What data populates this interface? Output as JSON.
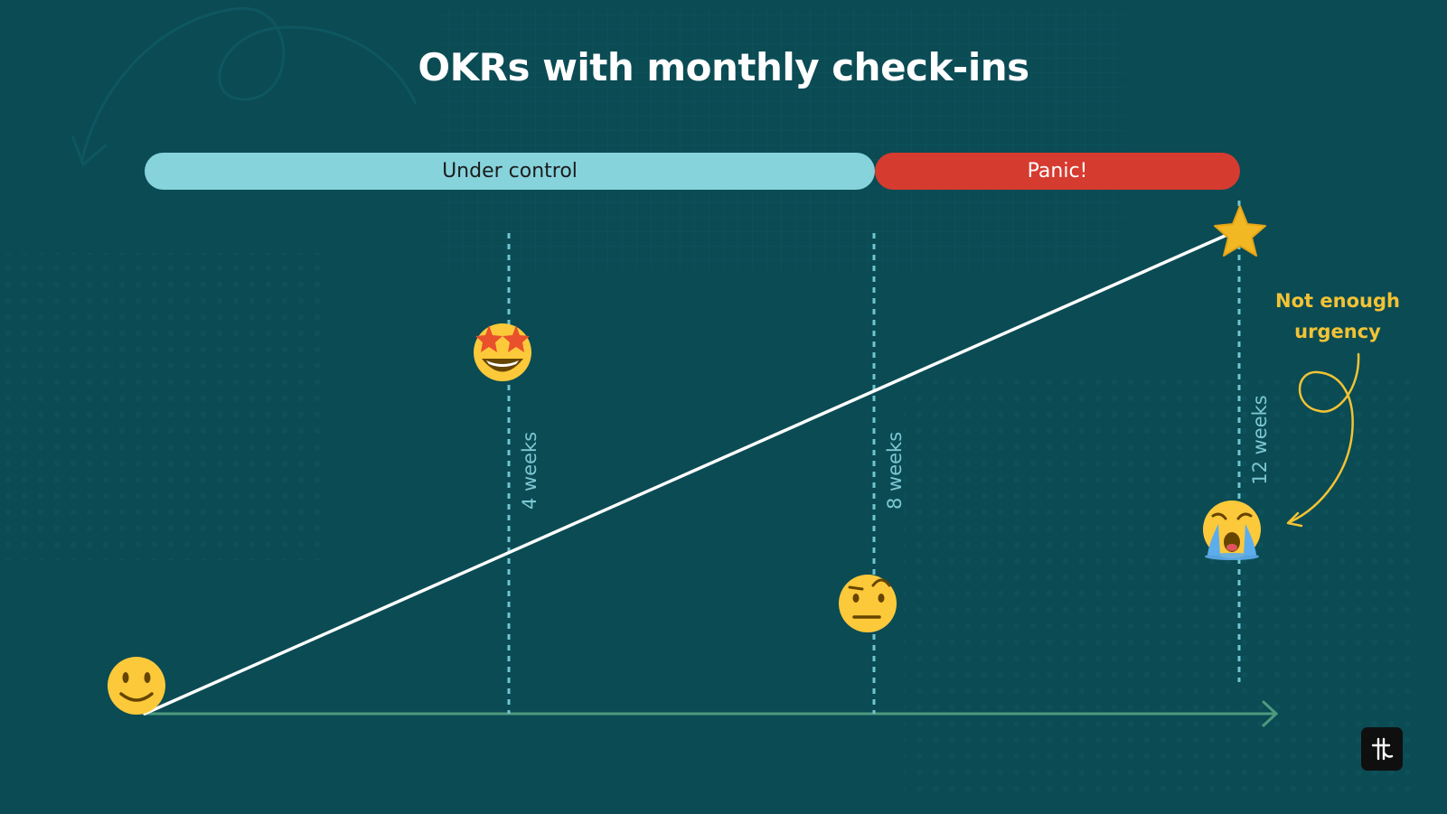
{
  "title": "OKRs with monthly check-ins",
  "phases": {
    "calm_label": "Under control",
    "panic_label": "Panic!"
  },
  "checkpoints": [
    {
      "label": "4 weeks",
      "mood_icon": "star-struck-face-icon"
    },
    {
      "label": "8 weeks",
      "mood_icon": "raised-eyebrow-face-icon"
    },
    {
      "label": "12 weeks",
      "mood_icon": "crying-face-icon"
    }
  ],
  "start_icon": "slightly-smiling-face-icon",
  "goal_icon": "star-icon",
  "annotation": "Not enough urgency",
  "colors": {
    "background": "#0b4b54",
    "calm": "#86d3dc",
    "panic": "#d63b2f",
    "checkpoint_line": "#6fc6d2",
    "annotation": "#f2c335",
    "progress_line": "#ffffff",
    "time_axis": "#4e9a7e"
  }
}
